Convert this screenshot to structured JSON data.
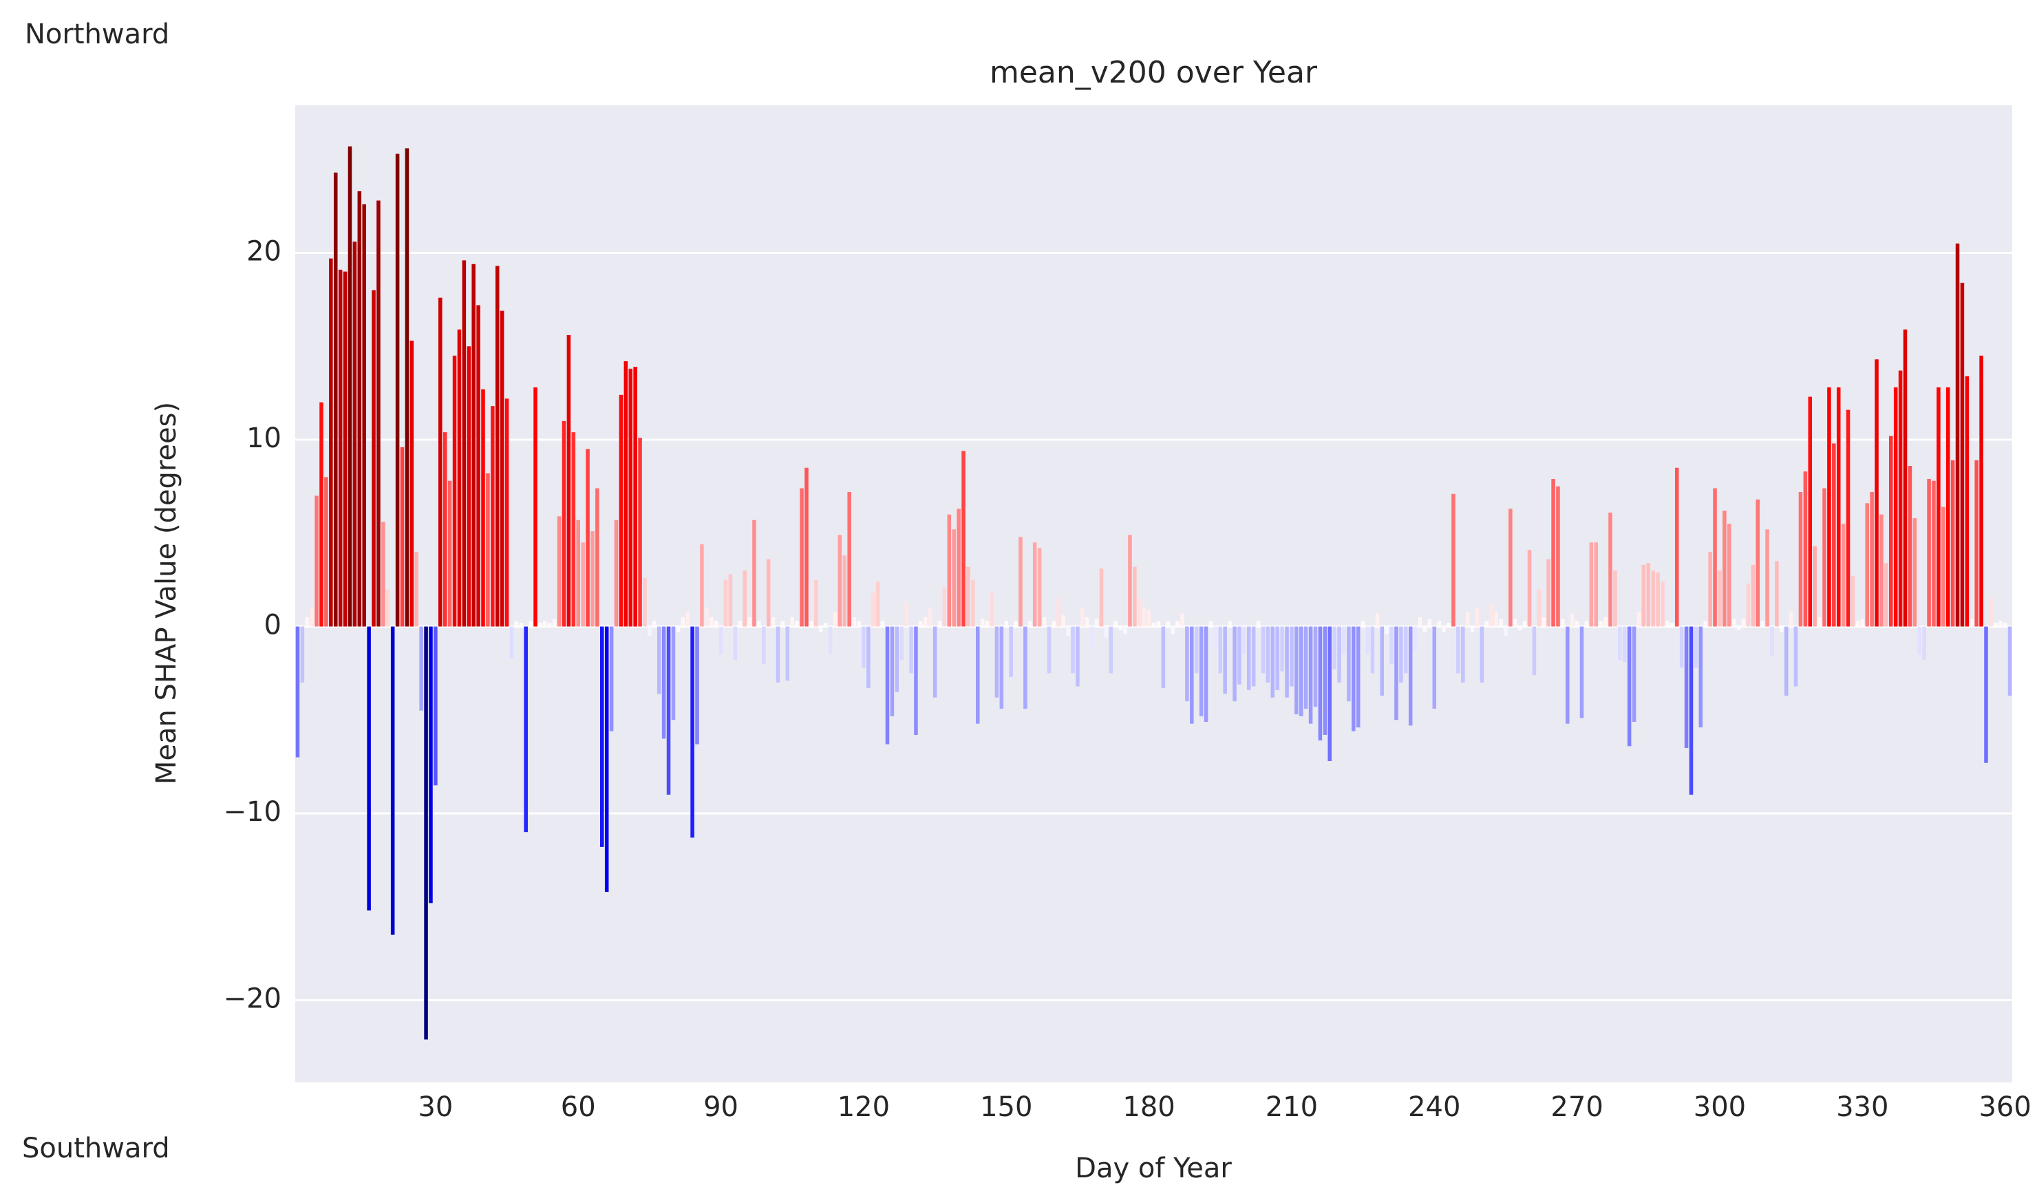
{
  "chart_data": {
    "type": "bar",
    "title": "mean_v200 over Year",
    "xlabel": "Day of Year",
    "ylabel": "Mean SHAP Value (degrees)",
    "annotations": [
      "Northward",
      "Southward"
    ],
    "colormap": "seismic",
    "background": "#eaeaf2",
    "grid": "y",
    "xlim": [
      0.5,
      361.5
    ],
    "xticks": [
      30,
      60,
      90,
      120,
      150,
      180,
      210,
      240,
      270,
      300,
      330,
      360
    ],
    "ylim": [
      -24.4,
      27.9
    ],
    "yticks": [
      {
        "value": -20,
        "label": "−20"
      },
      {
        "value": -10,
        "label": "−10"
      },
      0,
      10,
      20
    ],
    "x": [
      1,
      2,
      3,
      4,
      5,
      6,
      7,
      8,
      9,
      10,
      11,
      12,
      13,
      14,
      15,
      16,
      17,
      18,
      19,
      20,
      21,
      22,
      23,
      24,
      25,
      26,
      27,
      28,
      29,
      30,
      31,
      32,
      33,
      34,
      35,
      36,
      37,
      38,
      39,
      40,
      41,
      42,
      43,
      44,
      45,
      46,
      47,
      48,
      49,
      50,
      51,
      52,
      53,
      54,
      55,
      56,
      57,
      58,
      59,
      60,
      61,
      62,
      63,
      64,
      65,
      66,
      67,
      68,
      69,
      70,
      71,
      72,
      73,
      74,
      75,
      76,
      77,
      78,
      79,
      80,
      81,
      82,
      83,
      84,
      85,
      86,
      87,
      88,
      89,
      90,
      91,
      92,
      93,
      94,
      95,
      96,
      97,
      98,
      99,
      100,
      101,
      102,
      103,
      104,
      105,
      106,
      107,
      108,
      109,
      110,
      111,
      112,
      113,
      114,
      115,
      116,
      117,
      118,
      119,
      120,
      121,
      122,
      123,
      124,
      125,
      126,
      127,
      128,
      129,
      130,
      131,
      132,
      133,
      134,
      135,
      136,
      137,
      138,
      139,
      140,
      141,
      142,
      143,
      144,
      145,
      146,
      147,
      148,
      149,
      150,
      151,
      152,
      153,
      154,
      155,
      156,
      157,
      158,
      159,
      160,
      161,
      162,
      163,
      164,
      165,
      166,
      167,
      168,
      169,
      170,
      171,
      172,
      173,
      174,
      175,
      176,
      177,
      178,
      179,
      180,
      181,
      182,
      183,
      184,
      185,
      186,
      187,
      188,
      189,
      190,
      191,
      192,
      193,
      194,
      195,
      196,
      197,
      198,
      199,
      200,
      201,
      202,
      203,
      204,
      205,
      206,
      207,
      208,
      209,
      210,
      211,
      212,
      213,
      214,
      215,
      216,
      217,
      218,
      219,
      220,
      221,
      222,
      223,
      224,
      225,
      226,
      227,
      228,
      229,
      230,
      231,
      232,
      233,
      234,
      235,
      236,
      237,
      238,
      239,
      240,
      241,
      242,
      243,
      244,
      245,
      246,
      247,
      248,
      249,
      250,
      251,
      252,
      253,
      254,
      255,
      256,
      257,
      258,
      259,
      260,
      261,
      262,
      263,
      264,
      265,
      266,
      267,
      268,
      269,
      270,
      271,
      272,
      273,
      274,
      275,
      276,
      277,
      278,
      279,
      280,
      281,
      282,
      283,
      284,
      285,
      286,
      287,
      288,
      289,
      290,
      291,
      292,
      293,
      294,
      295,
      296,
      297,
      298,
      299,
      300,
      301,
      302,
      303,
      304,
      305,
      306,
      307,
      308,
      309,
      310,
      311,
      312,
      313,
      314,
      315,
      316,
      317,
      318,
      319,
      320,
      321,
      322,
      323,
      324,
      325,
      326,
      327,
      328,
      329,
      330,
      331,
      332,
      333,
      334,
      335,
      336,
      337,
      338,
      339,
      340,
      341,
      342,
      343,
      344,
      345,
      346,
      347,
      348,
      349,
      350,
      351,
      352,
      353,
      354,
      355,
      356,
      357,
      358,
      359,
      360,
      361
    ],
    "values": [
      -7,
      -3,
      0.5,
      1,
      7,
      12,
      8,
      19.7,
      24.3,
      19.1,
      19,
      25.7,
      20.6,
      23.3,
      22.6,
      -15.2,
      18,
      22.8,
      5.6,
      2,
      -16.5,
      25.3,
      9.6,
      25.6,
      15.3,
      4,
      -4.5,
      -22.1,
      -14.8,
      -8.5,
      17.6,
      10.4,
      7.8,
      14.5,
      15.9,
      19.6,
      15,
      19.4,
      17.2,
      12.7,
      8.2,
      11.8,
      19.3,
      16.9,
      12.2,
      -1.7,
      0.3,
      0.2,
      -11,
      0.3,
      12.8,
      0.2,
      0.3,
      0.2,
      0.4,
      5.9,
      11,
      15.6,
      10.4,
      5.7,
      4.5,
      9.5,
      5.1,
      7.4,
      -11.8,
      -14.2,
      -5.6,
      5.7,
      12.4,
      14.2,
      13.8,
      13.9,
      10.1,
      2.6,
      -0.5,
      0.3,
      -3.6,
      -6,
      -9,
      -5,
      -0.3,
      0.5,
      0.8,
      -11.3,
      -6.3,
      4.4,
      1,
      0.5,
      0.3,
      -1.5,
      2.5,
      2.8,
      -1.8,
      0.3,
      3,
      0.5,
      5.7,
      0.3,
      -2,
      3.6,
      0.5,
      -3,
      0.3,
      -2.9,
      0.5,
      0.3,
      7.4,
      8.5,
      0.3,
      2.5,
      -0.3,
      0.2,
      -1.5,
      0.8,
      4.9,
      3.8,
      7.2,
      0.5,
      0.3,
      -2.2,
      -3.3,
      1.8,
      2.4,
      0.3,
      -6.3,
      -4.8,
      -3.5,
      -1.8,
      1.3,
      -2.5,
      -5.8,
      0.3,
      0.5,
      1,
      -3.8,
      0.3,
      2.1,
      6,
      5.2,
      6.3,
      9.4,
      3.2,
      2.5,
      -5.2,
      0.4,
      0.3,
      1.8,
      -3.8,
      -4.4,
      0.3,
      -2.7,
      0.3,
      4.8,
      -4.4,
      0.3,
      4.5,
      4.2,
      0.5,
      -2.5,
      0.3,
      1.5,
      0.6,
      -0.5,
      -2.5,
      -3.2,
      1,
      0.5,
      -1.2,
      0.4,
      3.1,
      -0.6,
      -2.5,
      0.3,
      -0.2,
      -0.4,
      4.9,
      3.2,
      1.5,
      1,
      0.9,
      0.2,
      0.3,
      -3.3,
      0.3,
      -0.4,
      0.3,
      0.7,
      -4,
      -5.2,
      -2.5,
      -4.8,
      -5.1,
      0.3,
      -1.2,
      -2.5,
      -3.6,
      0.3,
      -4,
      -3.1,
      -1.5,
      -3.4,
      -3.2,
      0.3,
      -2.5,
      -3,
      -3.8,
      -3.4,
      -2.4,
      -3.8,
      -3.2,
      -4.7,
      -4.8,
      -4.4,
      -5.2,
      -4.3,
      -6.1,
      -5.8,
      -7.2,
      -2.3,
      -3,
      -1.5,
      -4,
      -5.6,
      -5.4,
      0.3,
      -1.5,
      -2.5,
      0.7,
      -3.7,
      -0.4,
      -2,
      -5,
      -3,
      -2.5,
      -5.3,
      -1.3,
      0.5,
      -0.3,
      0.4,
      -4.4,
      0.3,
      -0.3,
      0.2,
      7.1,
      -2.5,
      -3,
      0.8,
      -0.3,
      1,
      -3,
      0.3,
      1.2,
      0.8,
      0.4,
      -0.5,
      6.3,
      0.4,
      -0.2,
      0.3,
      4.1,
      -2.6,
      2,
      0.5,
      3.6,
      7.9,
      7.5,
      0.4,
      -5.2,
      0.7,
      0.3,
      -4.9,
      0.3,
      4.5,
      4.5,
      0.3,
      0.5,
      6.1,
      3,
      -1.8,
      -1.9,
      -6.4,
      -5.1,
      0.8,
      3.3,
      3.4,
      3,
      2.9,
      2.4,
      0.3,
      0.2,
      8.5,
      -2.2,
      -6.5,
      -9,
      -2.2,
      -5.4,
      0.3,
      4,
      7.4,
      3,
      6.2,
      5.5,
      0.4,
      -0.2,
      0.4,
      2.3,
      3.3,
      6.8,
      0.3,
      5.2,
      -1.6,
      3.5,
      -0.3,
      -3.7,
      0.8,
      -3.2,
      7.2,
      8.3,
      12.3,
      4.3,
      0.5,
      7.4,
      12.8,
      9.8,
      12.8,
      5.5,
      11.6,
      2.7,
      0.3,
      0.4,
      6.6,
      7.2,
      14.3,
      6,
      3.4,
      10.2,
      12.8,
      13.7,
      15.9,
      8.6,
      5.8,
      -1.5,
      -1.8,
      7.9,
      7.8,
      12.8,
      6.4,
      12.8,
      8.9,
      20.5,
      18.4,
      13.4,
      0.4,
      8.9,
      14.5,
      -7.3,
      1.5,
      0.2,
      0.3,
      0.2,
      -3.7
    ]
  }
}
